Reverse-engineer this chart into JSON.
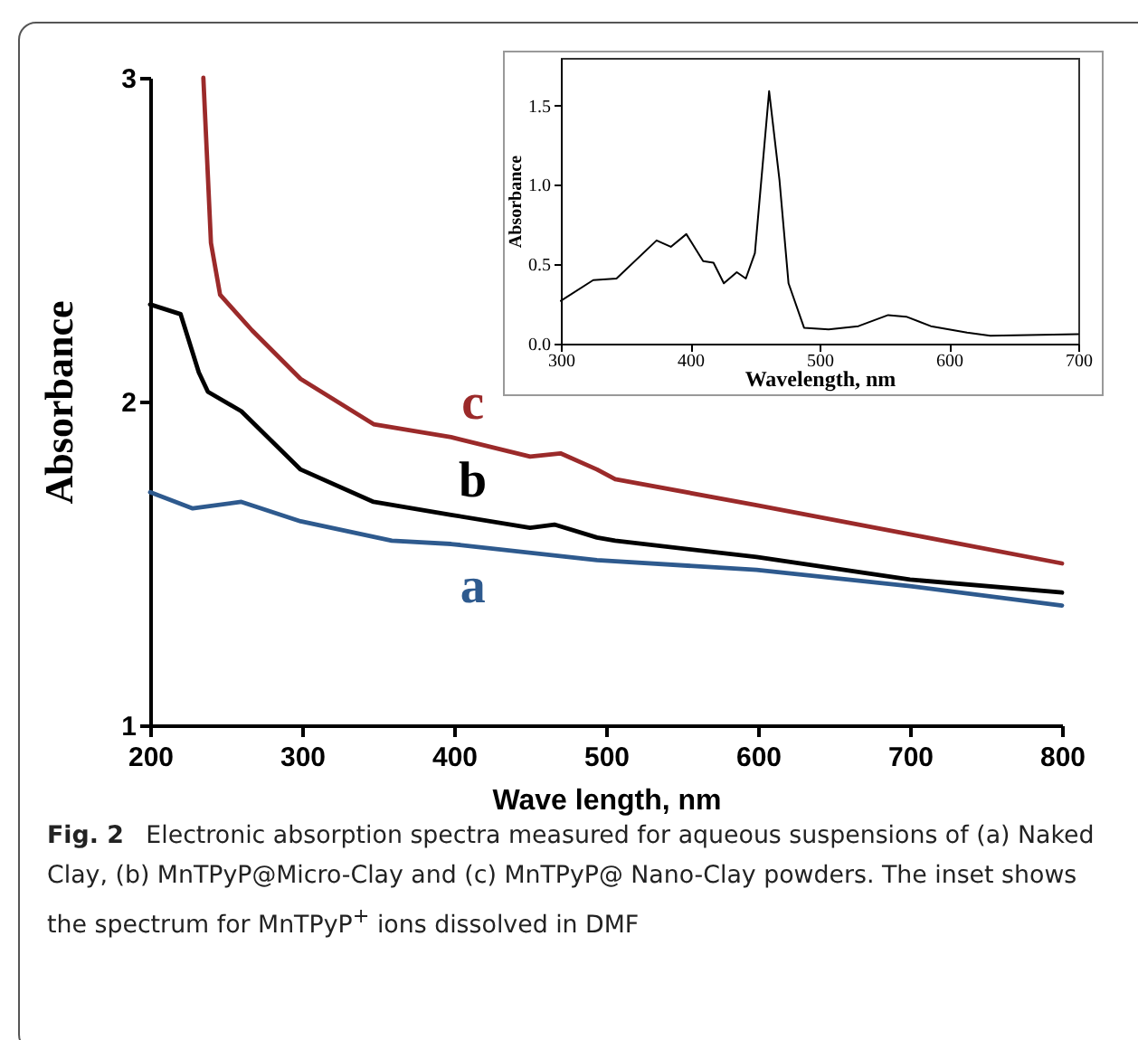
{
  "chart_data": [
    {
      "type": "line",
      "xlabel": "Wave length, nm",
      "ylabel": "Absorbance",
      "xlim": [
        200,
        800
      ],
      "ylim": [
        1,
        3
      ],
      "xticks": [
        200,
        300,
        400,
        500,
        600,
        700,
        800
      ],
      "yticks": [
        1,
        2,
        3
      ],
      "series": [
        {
          "name": "a",
          "color": "#2e5a8e",
          "x": [
            200,
            228,
            260,
            299,
            359,
            398,
            494,
            599,
            700,
            800
          ],
          "values": [
            1.72,
            1.67,
            1.69,
            1.63,
            1.57,
            1.56,
            1.51,
            1.48,
            1.43,
            1.37
          ]
        },
        {
          "name": "b",
          "color": "#000000",
          "x": [
            200,
            220,
            232,
            238,
            260,
            299,
            347,
            398,
            450,
            466,
            494,
            506,
            599,
            700,
            800
          ],
          "values": [
            2.3,
            2.27,
            2.09,
            2.03,
            1.97,
            1.79,
            1.69,
            1.65,
            1.61,
            1.62,
            1.58,
            1.57,
            1.52,
            1.45,
            1.41
          ]
        },
        {
          "name": "c",
          "color": "#9b2a2a",
          "x": [
            235,
            240,
            246,
            267,
            299,
            347,
            398,
            450,
            470,
            494,
            506,
            599,
            700,
            800
          ],
          "values": [
            3.0,
            2.49,
            2.33,
            2.22,
            2.07,
            1.93,
            1.89,
            1.83,
            1.84,
            1.79,
            1.76,
            1.68,
            1.59,
            1.5
          ]
        }
      ],
      "annotations": [
        "Fig. 2",
        "Electronic absorption spectra measured for aqueous suspensions of (a) Naked Clay, (b) MnTPyP@Micro-Clay and (c) MnTPyP@ Nano-Clay powders. The inset shows the spectrum for MnTPyP$^{+}$ ions dissolved in DMF"
      ]
    },
    {
      "type": "line",
      "xlabel": "Wavelength, nm",
      "ylabel": "Absorbance",
      "xlim": [
        300,
        700
      ],
      "ylim": [
        0,
        1.8
      ],
      "xticks": [
        300,
        400,
        500,
        600,
        700
      ],
      "yticks": [
        {
          "value": 0,
          "label": "0.0"
        },
        0.5,
        {
          "value": 1,
          "label": "1.0"
        },
        1.5
      ],
      "series": [
        {
          "color": "#000000",
          "x": [
            300,
            325,
            343,
            374,
            385,
            397,
            410,
            418,
            426,
            436,
            443,
            450,
            461,
            469,
            476,
            488,
            507,
            530,
            553,
            567,
            586,
            614,
            632,
            700
          ],
          "values": [
            0.27,
            0.4,
            0.41,
            0.65,
            0.61,
            0.69,
            0.52,
            0.51,
            0.38,
            0.45,
            0.41,
            0.57,
            1.59,
            1.03,
            0.38,
            0.1,
            0.09,
            0.11,
            0.18,
            0.17,
            0.11,
            0.07,
            0.05,
            0.06
          ]
        }
      ]
    }
  ]
}
